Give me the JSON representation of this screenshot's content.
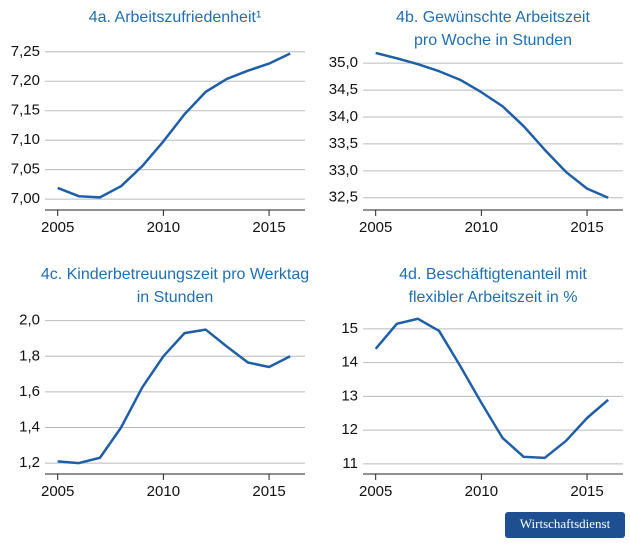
{
  "chart_data": [
    {
      "type": "line",
      "title": [
        "4a. Arbeitszufriedenheit¹"
      ],
      "color": "#1f5fa8",
      "x": [
        2005,
        2006,
        2007,
        2008,
        2009,
        2010,
        2011,
        2012,
        2013,
        2014,
        2015,
        2016
      ],
      "values": [
        7.019,
        7.005,
        7.003,
        7.022,
        7.056,
        7.098,
        7.144,
        7.182,
        7.204,
        7.218,
        7.23,
        7.247
      ],
      "xlim": [
        2004.4,
        2016.7
      ],
      "xticks": [
        2005,
        2010,
        2015
      ],
      "ylim": [
        6.985,
        7.27
      ],
      "yticks": [
        {
          "value": 7,
          "label": "7,00"
        },
        {
          "value": 7.05,
          "label": "7,05"
        },
        {
          "value": 7.1,
          "label": "7,10"
        },
        {
          "value": 7.15,
          "label": "7,15"
        },
        {
          "value": 7.2,
          "label": "7,20"
        },
        {
          "value": 7.25,
          "label": "7,25"
        }
      ],
      "grid": true
    },
    {
      "type": "line",
      "title": [
        "4b. Gewünschte Arbeitszeit",
        "pro Woche in Stunden"
      ],
      "color": "#1f5fa8",
      "x": [
        2005,
        2006,
        2007,
        2008,
        2009,
        2010,
        2011,
        2012,
        2013,
        2014,
        2015,
        2016
      ],
      "values": [
        35.19,
        35.09,
        34.98,
        34.85,
        34.69,
        34.46,
        34.2,
        33.83,
        33.39,
        32.98,
        32.67,
        32.5
      ],
      "xlim": [
        2004.4,
        2016.7
      ],
      "xticks": [
        2005,
        2010,
        2015
      ],
      "ylim": [
        32.31,
        35.43
      ],
      "yticks": [
        {
          "value": 32.5,
          "label": "32,5"
        },
        {
          "value": 33,
          "label": "33,0"
        },
        {
          "value": 33.5,
          "label": "33,5"
        },
        {
          "value": 34,
          "label": "34,0"
        },
        {
          "value": 34.5,
          "label": "34,5"
        },
        {
          "value": 35,
          "label": "35,0"
        }
      ],
      "grid": true
    },
    {
      "type": "line",
      "title": [
        "4c. Kinderbetreuungszeit pro Werktag",
        "in Stunden"
      ],
      "color": "#1f5fa8",
      "x": [
        2005,
        2006,
        2007,
        2008,
        2009,
        2010,
        2011,
        2012,
        2013,
        2014,
        2015,
        2016
      ],
      "values": [
        1.21,
        1.2,
        1.23,
        1.4,
        1.625,
        1.8,
        1.93,
        1.95,
        1.855,
        1.765,
        1.74,
        1.8
      ],
      "xlim": [
        2004.4,
        2016.7
      ],
      "xticks": [
        2005,
        2010,
        2015
      ],
      "ylim": [
        1.15,
        2.06
      ],
      "yticks": [
        {
          "value": 1.2,
          "label": "1,2"
        },
        {
          "value": 1.4,
          "label": "1,4"
        },
        {
          "value": 1.6,
          "label": "1,6"
        },
        {
          "value": 1.8,
          "label": "1,8"
        },
        {
          "value": 2,
          "label": "2,0"
        }
      ],
      "grid": true
    },
    {
      "type": "line",
      "title": [
        "4d. Beschäftigtenanteil mit",
        "flexibler Arbeitszeit in %"
      ],
      "color": "#1f5fa8",
      "x": [
        2005,
        2006,
        2007,
        2008,
        2009,
        2010,
        2011,
        2012,
        2013,
        2014,
        2015,
        2016
      ],
      "values": [
        14.41,
        15.15,
        15.3,
        14.94,
        13.9,
        12.81,
        11.77,
        11.21,
        11.18,
        11.68,
        12.36,
        12.9
      ],
      "xlim": [
        2004.4,
        2016.7
      ],
      "xticks": [
        2005,
        2010,
        2015
      ],
      "ylim": [
        10.76,
        15.56
      ],
      "yticks": [
        11,
        12,
        13,
        14,
        15
      ],
      "grid": true
    }
  ],
  "logo": "Wirtschaftsdienst"
}
